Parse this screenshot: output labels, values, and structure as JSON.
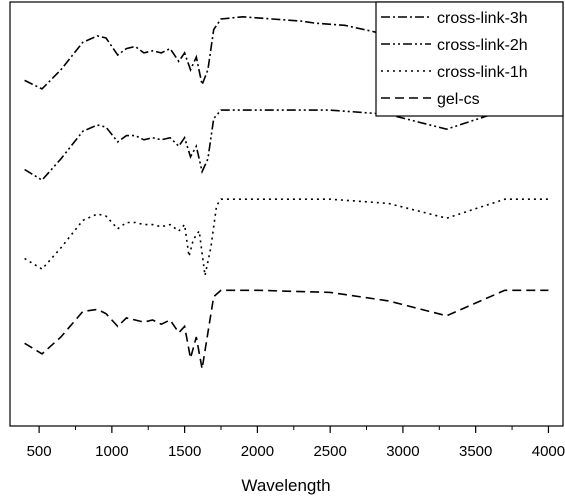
{
  "chart_data": {
    "type": "line",
    "title": "",
    "xlabel": "Wavelength",
    "ylabel": "",
    "xlim": [
      300,
      4100
    ],
    "ylim": [
      0,
      100
    ],
    "x_ticks": [
      500,
      1000,
      1500,
      2000,
      2500,
      3000,
      3500,
      4000
    ],
    "grid": false,
    "legend_position": "top-right",
    "colors": {
      "line": "#000000",
      "axis": "#000000",
      "background": "#ffffff"
    },
    "series": [
      {
        "name": "cross-link-3h",
        "dash": "dash-dot",
        "x": [
          400,
          520,
          650,
          800,
          900,
          960,
          1040,
          1100,
          1160,
          1220,
          1280,
          1340,
          1400,
          1460,
          1500,
          1540,
          1580,
          1620,
          1660,
          1700,
          1750,
          1900,
          2100,
          2300,
          2400,
          2600,
          2800,
          2900
        ],
        "y": [
          81.5,
          79.5,
          84,
          90.5,
          92,
          91.5,
          87.5,
          89,
          89.5,
          88,
          88.5,
          88,
          89,
          86,
          88,
          84,
          87,
          80.5,
          84,
          93.5,
          96,
          96.5,
          96,
          95.5,
          95,
          94.5,
          93,
          92
        ]
      },
      {
        "name": "cross-link-2h",
        "dash": "dash-dot-dot",
        "x": [
          400,
          520,
          650,
          800,
          900,
          960,
          1040,
          1100,
          1160,
          1220,
          1280,
          1340,
          1400,
          1460,
          1500,
          1540,
          1580,
          1620,
          1660,
          1700,
          1750,
          2000,
          2500,
          2900,
          3300,
          3700,
          4000
        ],
        "y": [
          60.5,
          58,
          63,
          69.5,
          71,
          70.5,
          67,
          68.5,
          68.5,
          67.5,
          68,
          67.5,
          68,
          66,
          68,
          63.5,
          66,
          60,
          63,
          72.5,
          74.5,
          74.5,
          74.5,
          73.5,
          70,
          74.5,
          74.5
        ]
      },
      {
        "name": "cross-link-1h",
        "dash": "dot",
        "x": [
          400,
          520,
          650,
          800,
          900,
          960,
          1040,
          1100,
          1160,
          1220,
          1280,
          1340,
          1400,
          1460,
          1500,
          1530,
          1560,
          1600,
          1640,
          1680,
          1720,
          1750,
          2000,
          2500,
          2900,
          3300,
          3700,
          4000
        ],
        "y": [
          39.5,
          37,
          42,
          48.5,
          50,
          49.5,
          46.5,
          48,
          48,
          47.5,
          47.5,
          47,
          47.5,
          46,
          47.5,
          40,
          44,
          46,
          35.5,
          42,
          52,
          53.5,
          53.5,
          53.5,
          52.5,
          49,
          53.5,
          53.5
        ]
      },
      {
        "name": "gel-cs",
        "dash": "dash",
        "x": [
          400,
          520,
          650,
          800,
          900,
          960,
          1040,
          1100,
          1160,
          1220,
          1280,
          1340,
          1400,
          1460,
          1500,
          1540,
          1580,
          1620,
          1660,
          1700,
          1750,
          2000,
          2500,
          2900,
          3300,
          3700,
          4000
        ],
        "y": [
          19.5,
          17,
          21,
          27,
          27.5,
          26.5,
          23.5,
          25.5,
          25,
          24.5,
          25,
          24,
          25,
          22,
          23.5,
          16,
          21,
          13.5,
          22,
          30.5,
          32,
          32,
          31.5,
          29.5,
          26,
          32,
          32
        ]
      }
    ]
  }
}
